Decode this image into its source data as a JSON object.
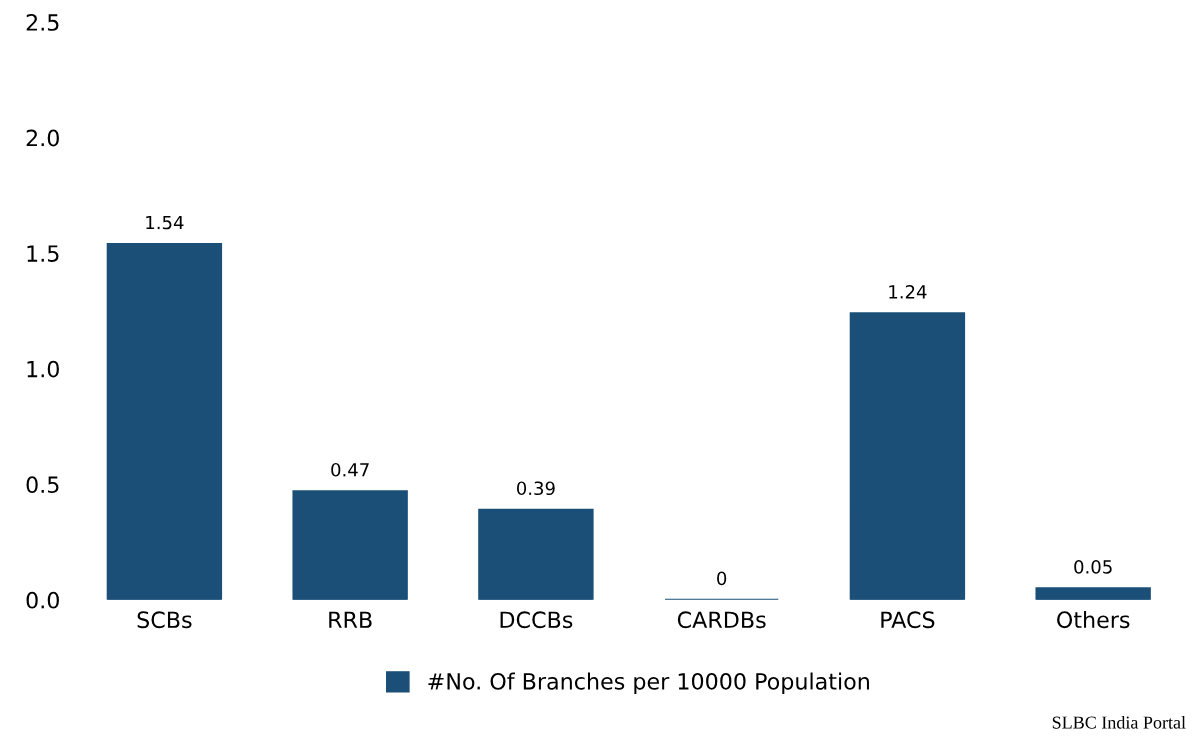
{
  "chart_data": {
    "type": "bar",
    "categories": [
      "SCBs",
      "RRB",
      "DCCBs",
      "CARDBs",
      "PACS",
      "Others"
    ],
    "series": [
      {
        "name": "#No. Of Branches per 10000 Population",
        "color": "#1b4f78",
        "values": [
          1.54,
          0.47,
          0.39,
          0,
          1.24,
          0.05
        ]
      }
    ],
    "ylim": [
      0,
      2.5
    ],
    "yticks": [
      {
        "value": 0,
        "label": "0.0"
      },
      {
        "value": 0.5,
        "label": "0.5"
      },
      {
        "value": 1,
        "label": "1.0"
      },
      {
        "value": 1.5,
        "label": "1.5"
      },
      {
        "value": 2,
        "label": "2.0"
      },
      {
        "value": 2.5,
        "label": "2.5"
      }
    ],
    "data_labels": true,
    "grid": false,
    "legend": "bottom",
    "annotations": [
      "SLBC India Portal"
    ]
  }
}
